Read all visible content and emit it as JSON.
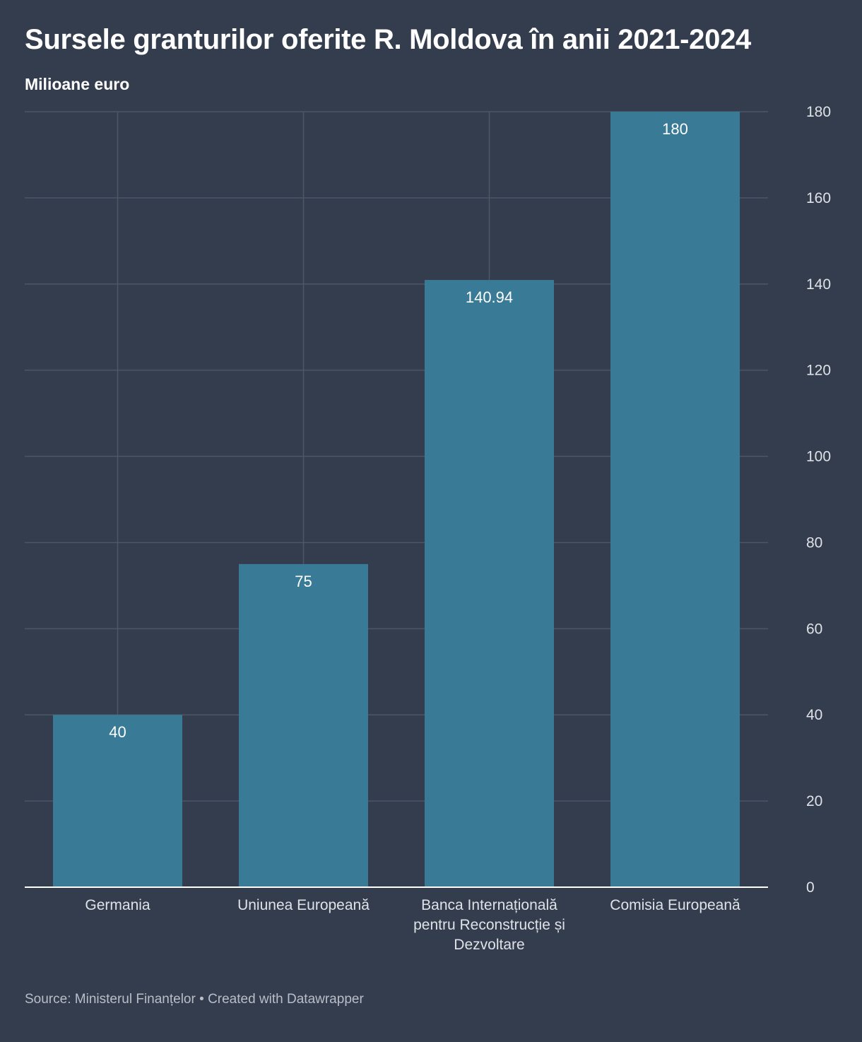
{
  "title": "Sursele granturilor oferite R. Moldova în anii 2021-2024",
  "subtitle": "Milioane euro",
  "footer": {
    "source_label": "Source:",
    "source": "Ministerul Finanțelor",
    "separator": "•",
    "credit": "Created with Datawrapper"
  },
  "colors": {
    "background": "#333d4e",
    "bar": "#397b96",
    "grid": "#4c5667",
    "axis_text": "#dfe2e7",
    "label_text": "#ffffff"
  },
  "chart_data": {
    "type": "bar",
    "title": "Sursele granturilor oferite R. Moldova în anii 2021-2024",
    "ylabel": "Milioane euro",
    "xlabel": "",
    "categories": [
      "Germania",
      "Uniunea Europeană",
      "Banca Internațională pentru Reconstrucție și Dezvoltare",
      "Comisia Europeană"
    ],
    "category_lines": [
      [
        "Germania"
      ],
      [
        "Uniunea Europeană"
      ],
      [
        "Banca Internațională",
        "pentru Reconstrucție și",
        "Dezvoltare"
      ],
      [
        "Comisia Europeană"
      ]
    ],
    "values": [
      40,
      75,
      140.94,
      180
    ],
    "value_labels": [
      "40",
      "75",
      "140.94",
      "180"
    ],
    "ylim": [
      0,
      180
    ],
    "yticks": [
      0,
      20,
      40,
      60,
      80,
      100,
      120,
      140,
      160,
      180
    ],
    "y_axis_position": "right",
    "grid": true
  }
}
